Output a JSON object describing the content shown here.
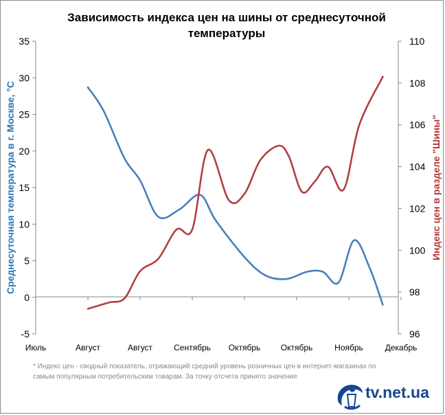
{
  "chart_data": {
    "type": "line",
    "title": "Зависимость индекса цен на шины от среднесуточной температуры",
    "x_tick_labels": [
      "Июль",
      "Август",
      "Август",
      "Сентябрь",
      "Октябрь",
      "Октябрь",
      "Ноябрь",
      "Декабрь"
    ],
    "left_axis": {
      "label": "Среднесуточная температура в г. Москве, °C",
      "min": -5,
      "max": 35,
      "step": 5,
      "color": "#2a76b8"
    },
    "right_axis": {
      "label": "Индекс цен в разделе \"Шины\"",
      "min": 96,
      "max": 110,
      "step": 2,
      "color": "#b23a3a"
    },
    "series": [
      {
        "name": "Среднесуточная температура в г. Москве, °C",
        "axis": "left",
        "color": "#4a7ebb",
        "x": [
          1,
          1.3,
          1.7,
          2.0,
          2.35,
          2.75,
          3.15,
          3.45,
          4.0,
          4.4,
          4.8,
          5.2,
          5.5,
          5.8,
          6.1,
          6.4,
          6.65
        ],
        "values": [
          28.7,
          25.5,
          19.0,
          16.0,
          11.0,
          12.0,
          14.0,
          10.5,
          5.5,
          3.0,
          2.5,
          3.5,
          3.5,
          2.0,
          7.8,
          4.0,
          -1.0
        ]
      },
      {
        "name": "Индекс цен в разделе \"Шины\"",
        "axis": "right",
        "color": "#b33f3f",
        "x": [
          1,
          1.4,
          1.7,
          2.0,
          2.35,
          2.7,
          3.0,
          3.3,
          3.7,
          4.0,
          4.3,
          4.65,
          4.85,
          5.1,
          5.35,
          5.6,
          5.9,
          6.2,
          6.65
        ],
        "values": [
          97.2,
          97.5,
          97.7,
          99.0,
          99.6,
          101.0,
          101.0,
          104.8,
          102.4,
          102.7,
          104.3,
          105.0,
          104.5,
          102.8,
          103.3,
          104.0,
          102.9,
          106.0,
          108.3
        ]
      }
    ]
  },
  "footnote": "* Индекс цен - сводный показатель, отражающий средний уровень розничных цен в интернет-магазинах по самым популярным потребительским товарам. За точку отсчета принято значение",
  "logo": {
    "text": "tv.net.ua"
  }
}
